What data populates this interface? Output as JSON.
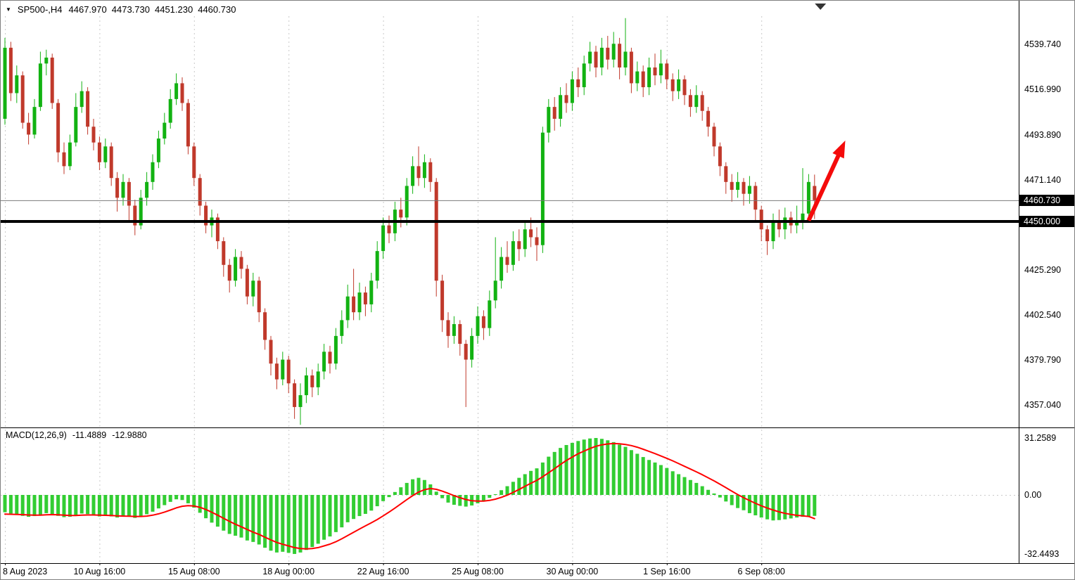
{
  "header": {
    "symbol_period": "SP500-,H4",
    "open": "4467.970",
    "high": "4473.730",
    "low": "4451.230",
    "close": "4460.730"
  },
  "macd_panel": {
    "label": "MACD(12,26,9)",
    "main_value": "-11.4889",
    "signal_value": "-12.9880"
  },
  "icons": {
    "dropdown_arrow": "▼"
  },
  "price_axis": {
    "current_badge": "4460.730",
    "line_badge": "4450.000"
  },
  "colors": {
    "bull": "#12b212",
    "bear": "#c0392b",
    "macd_hist": "#32cd32",
    "macd_signal": "#ff0000",
    "grid": "#c9c9c9",
    "border": "#000000",
    "current_price_line": "#7a7a7a",
    "support_line": "#000000",
    "arrow": "#f40b0b",
    "badge_bg": "#000000",
    "badge_text": "#ffffff",
    "background": "#ffffff"
  },
  "chart_data": {
    "type": "candlestick",
    "title": "SP500- H4 with MACD(12,26,9)",
    "timeframe": "H4",
    "symbol": "SP500-",
    "legend_position": "top-left",
    "grid": "vertical-dashed",
    "price_view_range": [
      4344,
      4556
    ],
    "macd_view_range": [
      -36,
      34
    ],
    "levels": {
      "support_line": 4450.0,
      "current_price": 4460.73
    },
    "shift_marker_index": 138,
    "arrow": {
      "from_index": 136,
      "from_price": 4450.5,
      "to_index": 142.2,
      "to_price": 4491.0,
      "color": "#f40b0b"
    },
    "price_ticks": [
      {
        "value": 4539.74,
        "label": "4539.740"
      },
      {
        "value": 4516.99,
        "label": "4516.990"
      },
      {
        "value": 4493.89,
        "label": "4493.890"
      },
      {
        "value": 4471.14,
        "label": "4471.140"
      },
      {
        "value": 4425.29,
        "label": "4425.290"
      },
      {
        "value": 4402.54,
        "label": "4402.540"
      },
      {
        "value": 4379.79,
        "label": "4379.790"
      },
      {
        "value": 4357.04,
        "label": "4357.040"
      }
    ],
    "macd_ticks": [
      {
        "value": 31.2589,
        "label": "31.2589"
      },
      {
        "value": 0,
        "label": "0.00"
      },
      {
        "value": -32.4493,
        "label": "-32.4493"
      }
    ],
    "time_gridlines": [
      {
        "index": 0,
        "label": "8 Aug 2023"
      },
      {
        "index": 16,
        "label": "10 Aug 16:00"
      },
      {
        "index": 32,
        "label": "15 Aug 08:00"
      },
      {
        "index": 48,
        "label": "18 Aug 00:00"
      },
      {
        "index": 64,
        "label": "22 Aug 16:00"
      },
      {
        "index": 80,
        "label": "25 Aug 08:00"
      },
      {
        "index": 96,
        "label": "30 Aug 00:00"
      },
      {
        "index": 112,
        "label": "1 Sep 16:00"
      },
      {
        "index": 128,
        "label": "6 Sep 08:00"
      }
    ],
    "candles": [
      [
        4502,
        4543,
        4499,
        4538
      ],
      [
        4538,
        4541,
        4511,
        4515
      ],
      [
        4515,
        4529,
        4510,
        4524
      ],
      [
        4524,
        4526,
        4497,
        4500
      ],
      [
        4500,
        4505,
        4489,
        4494
      ],
      [
        4494,
        4512,
        4492,
        4508
      ],
      [
        4508,
        4536,
        4506,
        4530
      ],
      [
        4530,
        4537,
        4524,
        4533
      ],
      [
        4533,
        4535,
        4507,
        4510
      ],
      [
        4510,
        4512,
        4480,
        4485
      ],
      [
        4485,
        4490,
        4474,
        4478
      ],
      [
        4478,
        4494,
        4476,
        4490
      ],
      [
        4490,
        4515,
        4488,
        4508
      ],
      [
        4508,
        4521,
        4505,
        4516
      ],
      [
        4516,
        4518,
        4494,
        4498
      ],
      [
        4498,
        4502,
        4486,
        4490
      ],
      [
        4490,
        4493,
        4476,
        4480
      ],
      [
        4480,
        4492,
        4477,
        4488
      ],
      [
        4488,
        4490,
        4468,
        4472
      ],
      [
        4472,
        4475,
        4455,
        4462
      ],
      [
        4462,
        4474,
        4458,
        4470
      ],
      [
        4470,
        4472,
        4450,
        4458
      ],
      [
        4458,
        4461,
        4443,
        4448
      ],
      [
        4448,
        4466,
        4446,
        4462
      ],
      [
        4462,
        4475,
        4458,
        4470
      ],
      [
        4470,
        4484,
        4466,
        4480
      ],
      [
        4480,
        4496,
        4477,
        4492
      ],
      [
        4492,
        4505,
        4489,
        4500
      ],
      [
        4500,
        4517,
        4497,
        4512
      ],
      [
        4512,
        4525,
        4509,
        4520
      ],
      [
        4520,
        4523,
        4506,
        4510
      ],
      [
        4510,
        4512,
        4484,
        4488
      ],
      [
        4488,
        4490,
        4468,
        4472
      ],
      [
        4472,
        4474,
        4453,
        4458
      ],
      [
        4458,
        4460,
        4444,
        4448
      ],
      [
        4448,
        4456,
        4442,
        4452
      ],
      [
        4452,
        4454,
        4436,
        4440
      ],
      [
        4440,
        4442,
        4422,
        4428
      ],
      [
        4428,
        4431,
        4414,
        4420
      ],
      [
        4420,
        4436,
        4417,
        4432
      ],
      [
        4432,
        4435,
        4421,
        4426
      ],
      [
        4426,
        4428,
        4408,
        4412
      ],
      [
        4412,
        4424,
        4407,
        4420
      ],
      [
        4420,
        4422,
        4399,
        4404
      ],
      [
        4404,
        4406,
        4385,
        4390
      ],
      [
        4390,
        4392,
        4372,
        4378
      ],
      [
        4378,
        4381,
        4365,
        4370
      ],
      [
        4370,
        4384,
        4367,
        4380
      ],
      [
        4380,
        4382,
        4363,
        4368
      ],
      [
        4368,
        4370,
        4350,
        4356
      ],
      [
        4356,
        4368,
        4347,
        4362
      ],
      [
        4362,
        4376,
        4358,
        4372
      ],
      [
        4372,
        4375,
        4361,
        4366
      ],
      [
        4366,
        4378,
        4362,
        4374
      ],
      [
        4374,
        4388,
        4370,
        4384
      ],
      [
        4384,
        4387,
        4373,
        4378
      ],
      [
        4378,
        4396,
        4375,
        4392
      ],
      [
        4392,
        4405,
        4388,
        4400
      ],
      [
        4400,
        4418,
        4396,
        4412
      ],
      [
        4412,
        4426,
        4400,
        4404
      ],
      [
        4404,
        4419,
        4400,
        4414
      ],
      [
        4414,
        4417,
        4402,
        4408
      ],
      [
        4408,
        4424,
        4404,
        4420
      ],
      [
        4420,
        4440,
        4416,
        4435
      ],
      [
        4435,
        4452,
        4431,
        4448
      ],
      [
        4448,
        4453,
        4439,
        4444
      ],
      [
        4444,
        4460,
        4440,
        4456
      ],
      [
        4456,
        4462,
        4447,
        4452
      ],
      [
        4452,
        4472,
        4448,
        4468
      ],
      [
        4468,
        4483,
        4464,
        4478
      ],
      [
        4478,
        4488,
        4468,
        4472
      ],
      [
        4472,
        4484,
        4467,
        4480
      ],
      [
        4480,
        4482,
        4465,
        4470
      ],
      [
        4470,
        4472,
        4412,
        4420
      ],
      [
        4420,
        4423,
        4394,
        4400
      ],
      [
        4400,
        4404,
        4386,
        4392
      ],
      [
        4392,
        4402,
        4388,
        4398
      ],
      [
        4398,
        4400,
        4382,
        4388
      ],
      [
        4388,
        4390,
        4356,
        4380
      ],
      [
        4380,
        4396,
        4376,
        4392
      ],
      [
        4392,
        4407,
        4388,
        4402
      ],
      [
        4402,
        4405,
        4390,
        4396
      ],
      [
        4396,
        4415,
        4392,
        4410
      ],
      [
        4410,
        4442,
        4406,
        4420
      ],
      [
        4420,
        4437,
        4416,
        4432
      ],
      [
        4432,
        4440,
        4424,
        4428
      ],
      [
        4428,
        4445,
        4425,
        4440
      ],
      [
        4440,
        4446,
        4430,
        4436
      ],
      [
        4436,
        4450,
        4432,
        4446
      ],
      [
        4446,
        4452,
        4437,
        4442
      ],
      [
        4442,
        4447,
        4430,
        4438
      ],
      [
        4438,
        4498,
        4434,
        4495
      ],
      [
        4495,
        4512,
        4490,
        4508
      ],
      [
        4508,
        4513,
        4496,
        4502
      ],
      [
        4502,
        4518,
        4498,
        4514
      ],
      [
        4514,
        4520,
        4505,
        4510
      ],
      [
        4510,
        4526,
        4506,
        4522
      ],
      [
        4522,
        4528,
        4513,
        4518
      ],
      [
        4518,
        4534,
        4514,
        4530
      ],
      [
        4530,
        4541,
        4526,
        4536
      ],
      [
        4536,
        4539,
        4523,
        4528
      ],
      [
        4528,
        4543,
        4524,
        4538
      ],
      [
        4538,
        4544,
        4527,
        4532
      ],
      [
        4532,
        4546,
        4528,
        4540
      ],
      [
        4540,
        4543,
        4522,
        4528
      ],
      [
        4528,
        4553,
        4524,
        4536
      ],
      [
        4536,
        4538,
        4515,
        4520
      ],
      [
        4520,
        4531,
        4516,
        4526
      ],
      [
        4526,
        4529,
        4513,
        4518
      ],
      [
        4518,
        4533,
        4514,
        4528
      ],
      [
        4528,
        4535,
        4519,
        4524
      ],
      [
        4524,
        4537,
        4520,
        4530
      ],
      [
        4530,
        4532,
        4517,
        4522
      ],
      [
        4522,
        4525,
        4511,
        4516
      ],
      [
        4516,
        4527,
        4512,
        4522
      ],
      [
        4522,
        4524,
        4509,
        4514
      ],
      [
        4514,
        4517,
        4503,
        4508
      ],
      [
        4508,
        4519,
        4505,
        4514
      ],
      [
        4514,
        4516,
        4501,
        4506
      ],
      [
        4506,
        4508,
        4493,
        4498
      ],
      [
        4498,
        4500,
        4483,
        4488
      ],
      [
        4488,
        4490,
        4473,
        4478
      ],
      [
        4478,
        4480,
        4464,
        4470
      ],
      [
        4470,
        4474,
        4460,
        4466
      ],
      [
        4466,
        4475,
        4462,
        4470
      ],
      [
        4470,
        4472,
        4458,
        4464
      ],
      [
        4464,
        4473,
        4459,
        4468
      ],
      [
        4468,
        4470,
        4450,
        4456
      ],
      [
        4456,
        4458,
        4440,
        4446
      ],
      [
        4446,
        4448,
        4433,
        4440
      ],
      [
        4440,
        4454,
        4436,
        4450
      ],
      [
        4450,
        4456,
        4442,
        4446
      ],
      [
        4446,
        4457,
        4441,
        4452
      ],
      [
        4452,
        4455,
        4444,
        4448
      ],
      [
        4448,
        4458,
        4444,
        4450
      ],
      [
        4450,
        4477,
        4446,
        4454
      ],
      [
        4454,
        4474,
        4450,
        4470
      ],
      [
        4467.97,
        4473.73,
        4451.23,
        4460.73
      ]
    ],
    "macd_histogram": [
      -9.5,
      -10.2,
      -10.8,
      -11.5,
      -12.0,
      -11.6,
      -10.8,
      -10.0,
      -10.5,
      -11.5,
      -12.2,
      -12.0,
      -11.0,
      -10.2,
      -10.5,
      -11.0,
      -11.8,
      -11.4,
      -11.8,
      -12.4,
      -11.8,
      -12.0,
      -12.6,
      -11.8,
      -10.6,
      -9.2,
      -7.4,
      -5.6,
      -3.8,
      -2.4,
      -2.8,
      -4.6,
      -7.0,
      -9.8,
      -12.8,
      -15.2,
      -17.4,
      -19.6,
      -21.4,
      -22.4,
      -23.4,
      -25.0,
      -25.8,
      -27.2,
      -29.0,
      -30.6,
      -31.6,
      -31.2,
      -31.8,
      -32.4,
      -31.6,
      -30.2,
      -28.6,
      -26.8,
      -24.6,
      -22.8,
      -20.4,
      -17.8,
      -15.0,
      -13.2,
      -11.6,
      -10.4,
      -8.6,
      -6.2,
      -3.4,
      -1.2,
      1.6,
      4.2,
      6.6,
      8.6,
      9.4,
      8.2,
      5.8,
      1.8,
      -1.8,
      -4.2,
      -5.4,
      -6.0,
      -6.4,
      -5.8,
      -4.6,
      -3.2,
      -1.6,
      0.4,
      2.6,
      4.8,
      7.2,
      9.4,
      11.4,
      13.2,
      14.6,
      17.8,
      21.0,
      23.6,
      25.8,
      27.4,
      28.6,
      29.6,
      30.4,
      31.0,
      31.26,
      30.8,
      30.0,
      29.0,
      27.6,
      26.4,
      24.6,
      22.6,
      20.8,
      19.2,
      17.8,
      16.4,
      14.8,
      13.0,
      11.4,
      9.8,
      8.2,
      6.6,
      4.8,
      2.8,
      0.8,
      -1.4,
      -3.6,
      -5.6,
      -7.2,
      -8.4,
      -10.0,
      -11.2,
      -12.4,
      -13.4,
      -14.0,
      -13.8,
      -13.4,
      -12.9,
      -12.4,
      -12.0,
      -11.7,
      -11.4889
    ],
    "macd_signal": [
      -10.5,
      -10.6,
      -10.7,
      -10.8,
      -11.0,
      -11.1,
      -11.1,
      -10.9,
      -10.8,
      -10.9,
      -11.1,
      -11.3,
      -11.3,
      -11.1,
      -11.0,
      -11.0,
      -11.1,
      -11.2,
      -11.3,
      -11.5,
      -11.6,
      -11.7,
      -11.8,
      -11.8,
      -11.6,
      -11.1,
      -10.4,
      -9.4,
      -8.3,
      -7.1,
      -6.2,
      -5.9,
      -6.1,
      -6.8,
      -8.0,
      -9.5,
      -11.1,
      -12.8,
      -14.5,
      -16.1,
      -17.5,
      -19.0,
      -20.4,
      -21.7,
      -23.2,
      -24.7,
      -26.1,
      -27.1,
      -28.0,
      -28.9,
      -29.4,
      -29.6,
      -29.4,
      -28.9,
      -28.0,
      -27.0,
      -25.7,
      -24.1,
      -22.3,
      -20.5,
      -18.7,
      -17.0,
      -15.3,
      -13.5,
      -11.5,
      -9.4,
      -7.2,
      -4.9,
      -2.6,
      -0.4,
      1.6,
      2.9,
      3.5,
      3.1,
      2.1,
      0.9,
      -0.4,
      -1.5,
      -2.5,
      -3.2,
      -3.4,
      -3.4,
      -3.0,
      -2.3,
      -1.3,
      -0.1,
      1.4,
      3.0,
      4.7,
      6.4,
      8.0,
      10.0,
      12.2,
      14.4,
      16.7,
      18.9,
      20.8,
      22.6,
      24.1,
      25.5,
      26.7,
      27.5,
      28.0,
      28.2,
      28.1,
      27.7,
      27.1,
      26.2,
      25.1,
      23.9,
      22.7,
      21.4,
      20.1,
      18.7,
      17.2,
      15.7,
      14.2,
      12.7,
      11.1,
      9.4,
      7.7,
      5.9,
      4.0,
      2.1,
      0.2,
      -1.5,
      -3.1,
      -4.6,
      -6.0,
      -7.2,
      -8.3,
      -9.3,
      -10.1,
      -10.7,
      -11.2,
      -11.5,
      -11.8,
      -12.988
    ]
  }
}
